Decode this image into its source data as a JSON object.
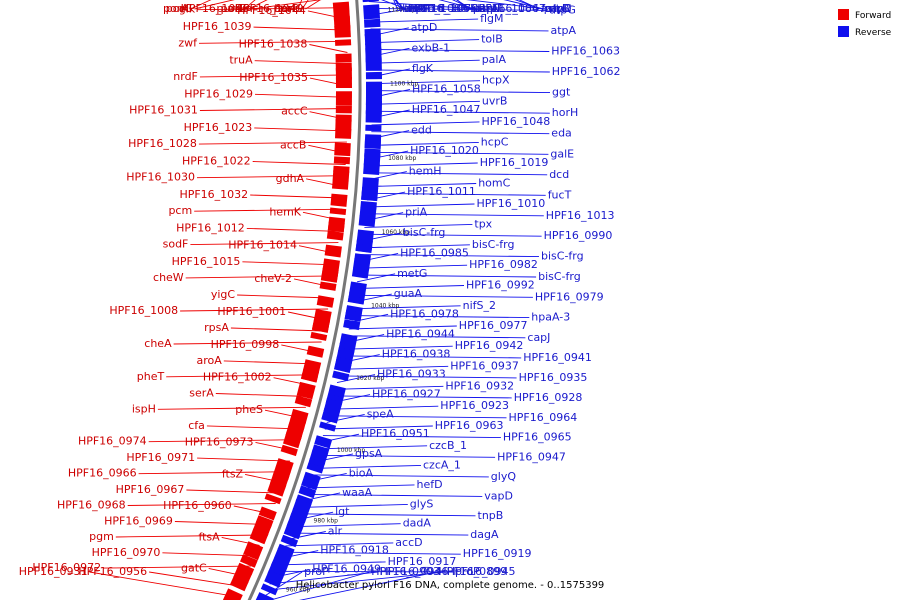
{
  "title": "Helicobacter pylori F16 DNA, complete genome. - 0..1575399",
  "legend": [
    {
      "label": "Forward",
      "color": "#ee0000"
    },
    {
      "label": "Reverse",
      "color": "#1010ee"
    }
  ],
  "colors": {
    "forward": "#ee0000",
    "reverse": "#1010ee",
    "backbone": "#777777"
  },
  "ticks": [
    "1140 kbp",
    "1120 kbp",
    "1100 kbp",
    "1080 kbp",
    "1060 kbp",
    "1040 kbp",
    "1020 kbp",
    "1000 kbp",
    "980 kbp",
    "960 kbp"
  ],
  "reverse_labels": [
    "HPF16_1085",
    "HPF16_1084",
    "fmt",
    "birA",
    "parA",
    "parB",
    "atpF",
    "atpH",
    "atpC",
    "exbD-1",
    "HPF16_1067",
    "slyD",
    "HPF16_1065",
    "atpF",
    "atpG",
    "HPF16_1070",
    "flgM",
    "atpA",
    "atpD",
    "tolB",
    "HPF16_1063",
    "exbB-1",
    "palA",
    "HPF16_1062",
    "flgK",
    "hcpX",
    "ggt",
    "HPF16_1058",
    "uvrB",
    "horH",
    "HPF16_1047",
    "HPF16_1048",
    "eda",
    "edd",
    "hcpC",
    "galE",
    "HPF16_1020",
    "HPF16_1019",
    "dcd",
    "hemH",
    "homC",
    "fucT",
    "HPF16_1011",
    "HPF16_1010",
    "HPF16_1013",
    "priA",
    "tpx",
    "HPF16_0990",
    "bisC-frg",
    "bisC-frg",
    "bisC-frg",
    "HPF16_0985",
    "HPF16_0982",
    "bisC-frg",
    "metG",
    "HPF16_0992",
    "HPF16_0979",
    "guaA",
    "nifS_2",
    "hpaA-3",
    "HPF16_0978",
    "HPF16_0977",
    "capJ",
    "HPF16_0944",
    "HPF16_0942",
    "HPF16_0941",
    "HPF16_0938",
    "HPF16_0937",
    "HPF16_0935",
    "HPF16_0933",
    "HPF16_0932",
    "HPF16_0928",
    "HPF16_0927",
    "HPF16_0923",
    "HPF16_0964",
    "speA",
    "HPF16_0963",
    "HPF16_0965",
    "HPF16_0951",
    "czcB_1",
    "HPF16_0947",
    "gpsA",
    "czcA_1",
    "glyQ",
    "bioA",
    "hefD",
    "vapD",
    "waaA",
    "glyS",
    "tnpB",
    "lgt",
    "dadA",
    "dagA",
    "alr",
    "accD",
    "HPF16_0919",
    "HPF16_0918",
    "HPF16_0917",
    "proP",
    "HPF16_0949",
    "HPF16_0946",
    "HPF16_0945",
    "proP",
    "HPF16_0903",
    "HPF16_0899"
  ],
  "forward_labels": [
    "horI",
    "purB",
    "porA",
    "porD",
    "porB",
    "porG",
    "HPF16_1049",
    "HPF16_1046",
    "glk",
    "HPF16_1044",
    "HPF16_1039",
    "zwf",
    "HPF16_1038",
    "truA",
    "nrdF",
    "HPF16_1035",
    "HPF16_1029",
    "HPF16_1031",
    "accC",
    "HPF16_1023",
    "HPF16_1028",
    "accB",
    "HPF16_1022",
    "HPF16_1030",
    "gdhA",
    "HPF16_1032",
    "pcm",
    "hemK",
    "HPF16_1012",
    "sodF",
    "HPF16_1014",
    "HPF16_1015",
    "cheW",
    "cheV-2",
    "yigC",
    "HPF16_1008",
    "HPF16_1001",
    "rpsA",
    "cheA",
    "HPF16_0998",
    "aroA",
    "pheT",
    "HPF16_1002",
    "serA",
    "ispH",
    "pheS",
    "cfa",
    "HPF16_0974",
    "HPF16_0973",
    "HPF16_0971",
    "HPF16_0966",
    "ftsZ",
    "HPF16_0967",
    "HPF16_0968",
    "HPF16_0960",
    "HPF16_0969",
    "pgm",
    "ftsA",
    "HPF16_0970",
    "HPF16_0972",
    "gatC",
    "HPF16_0956",
    "HPF16_0931"
  ]
}
